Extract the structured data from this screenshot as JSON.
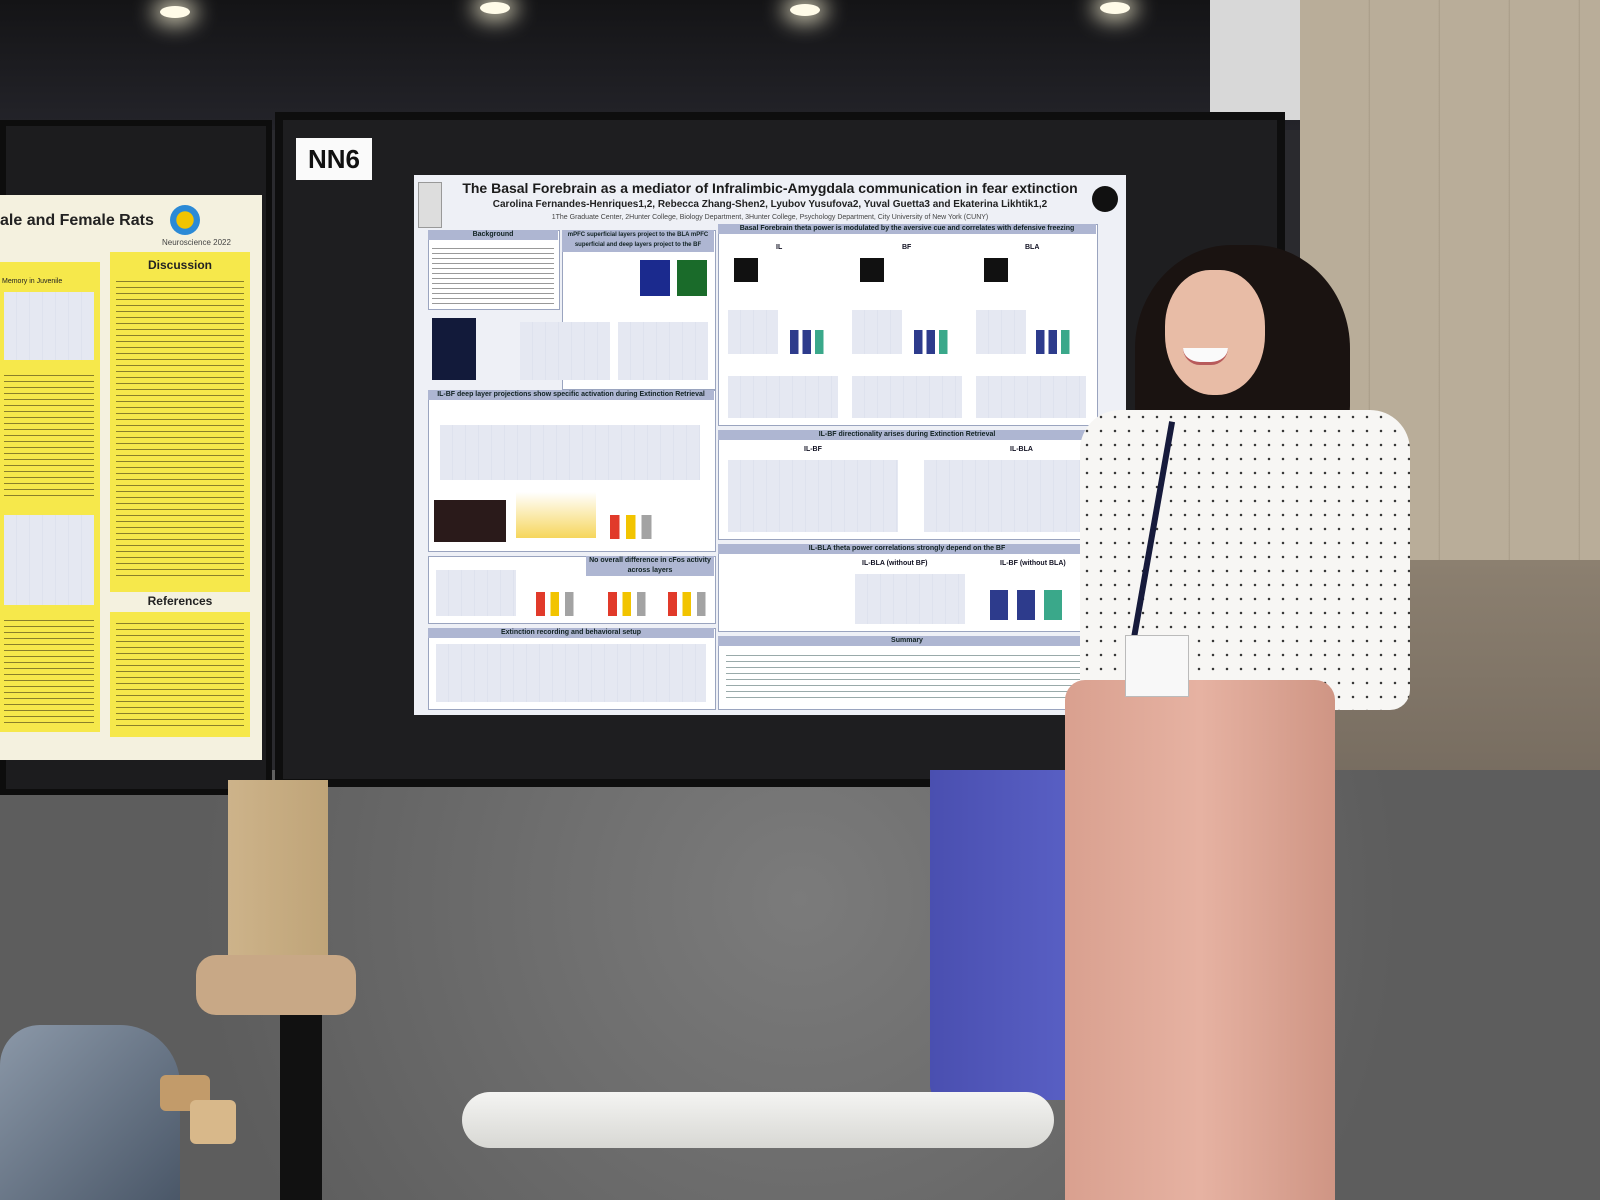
{
  "board_label": "NN6",
  "left_poster": {
    "title_fragment": "ale and Female Rats",
    "logo_text": "Neuroscience 2022",
    "discussion_heading": "Discussion",
    "references_heading": "References",
    "first_column_heading": "Memory in Juvenile"
  },
  "main_poster": {
    "title": "The Basal Forebrain as a mediator of Infralimbic-Amygdala communication in fear extinction",
    "authors": "Carolina Fernandes-Henriques1,2, Rebecca Zhang-Shen2, Lyubov Yusufova2, Yuval Guetta3 and Ekaterina Likhtik1,2",
    "affiliations": "1The Graduate Center, 2Hunter College, Biology Department, 3Hunter College, Psychology Department, City University of New York (CUNY)",
    "sections": {
      "background": "Background",
      "mpfc": "mPFC superficial layers project to the BLA mPFC superficial and deep layers project to the BF",
      "theta": "Basal Forebrain theta power is modulated by the aversive cue and correlates with defensive freezing",
      "theta_cols": [
        "IL",
        "BF",
        "BLA"
      ],
      "ilbf": "IL-BF deep layer projections show specific activation during Extinction Retrieval",
      "directionality": "IL-BF directionality arises during Extinction Retrieval",
      "directionality_cols": [
        "IL-BF",
        "IL-BLA"
      ],
      "no_diff": "No overall difference in cFos activity across layers",
      "ilbla_corr": "IL-BLA theta power correlations strongly depend on the BF",
      "ilbla_cols": [
        "IL-BLA (without BF)",
        "IL-BF (without BLA)"
      ],
      "extinction": "Extinction recording and behavioral setup",
      "summary": "Summary"
    }
  }
}
